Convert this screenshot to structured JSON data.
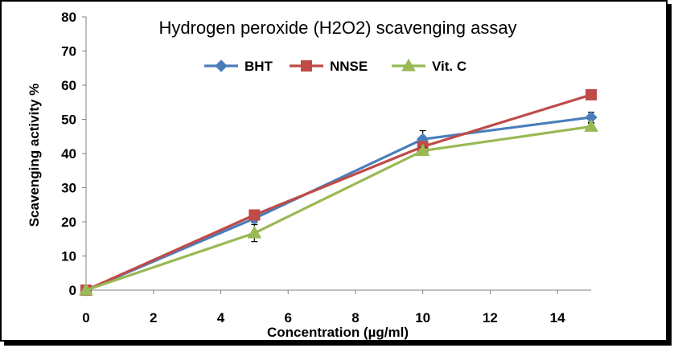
{
  "chart_data": {
    "type": "line",
    "title": "Hydrogen peroxide (H2O2) scavenging assay",
    "xlabel": "Concentration (µg/ml)",
    "ylabel": "Scavenging activity %",
    "xlim": [
      0,
      15
    ],
    "ylim": [
      0,
      80
    ],
    "x_ticks": [
      0,
      2,
      4,
      6,
      8,
      10,
      12,
      14
    ],
    "y_ticks": [
      0,
      10,
      20,
      30,
      40,
      50,
      60,
      70,
      80
    ],
    "x": [
      0,
      5,
      10,
      15
    ],
    "grid": false,
    "legend_position": "top",
    "series": [
      {
        "name": "BHT",
        "values": [
          0,
          21.0,
          44.2,
          50.6
        ],
        "errors": [
          0,
          1.2,
          2.5,
          1.5
        ],
        "color": "#4a7ebb",
        "marker": "diamond"
      },
      {
        "name": "NNSE",
        "values": [
          0,
          22.0,
          42.0,
          57.2
        ],
        "errors": [
          0,
          0.8,
          1.0,
          1.3
        ],
        "color": "#be4b48",
        "marker": "square"
      },
      {
        "name": "Vit. C",
        "values": [
          0,
          16.7,
          40.8,
          47.9
        ],
        "errors": [
          0,
          2.5,
          1.0,
          1.0
        ],
        "color": "#98b954",
        "marker": "triangle"
      }
    ]
  }
}
